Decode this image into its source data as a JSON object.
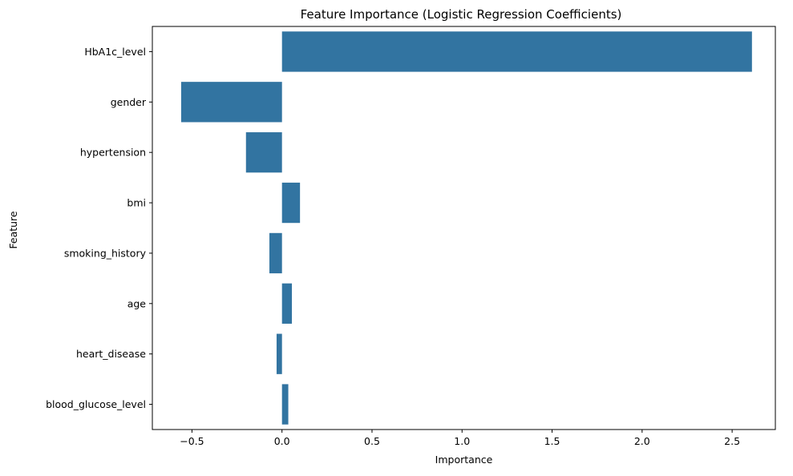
{
  "chart_data": {
    "type": "bar",
    "orientation": "horizontal",
    "title": "Feature Importance (Logistic Regression Coefficients)",
    "xlabel": "Importance",
    "ylabel": "Feature",
    "categories": [
      "HbA1c_level",
      "gender",
      "hypertension",
      "bmi",
      "smoking_history",
      "age",
      "heart_disease",
      "blood_glucose_level"
    ],
    "values": [
      2.61,
      -0.56,
      -0.2,
      0.1,
      -0.07,
      0.055,
      -0.03,
      0.035
    ],
    "xlim": [
      -0.72,
      2.74
    ],
    "xticks": [
      -0.5,
      0.0,
      0.5,
      1.0,
      1.5,
      2.0,
      2.5
    ],
    "xtick_labels": [
      "−0.5",
      "0.0",
      "0.5",
      "1.0",
      "1.5",
      "2.0",
      "2.5"
    ],
    "grid": false,
    "bar_color": "#3274a1"
  }
}
